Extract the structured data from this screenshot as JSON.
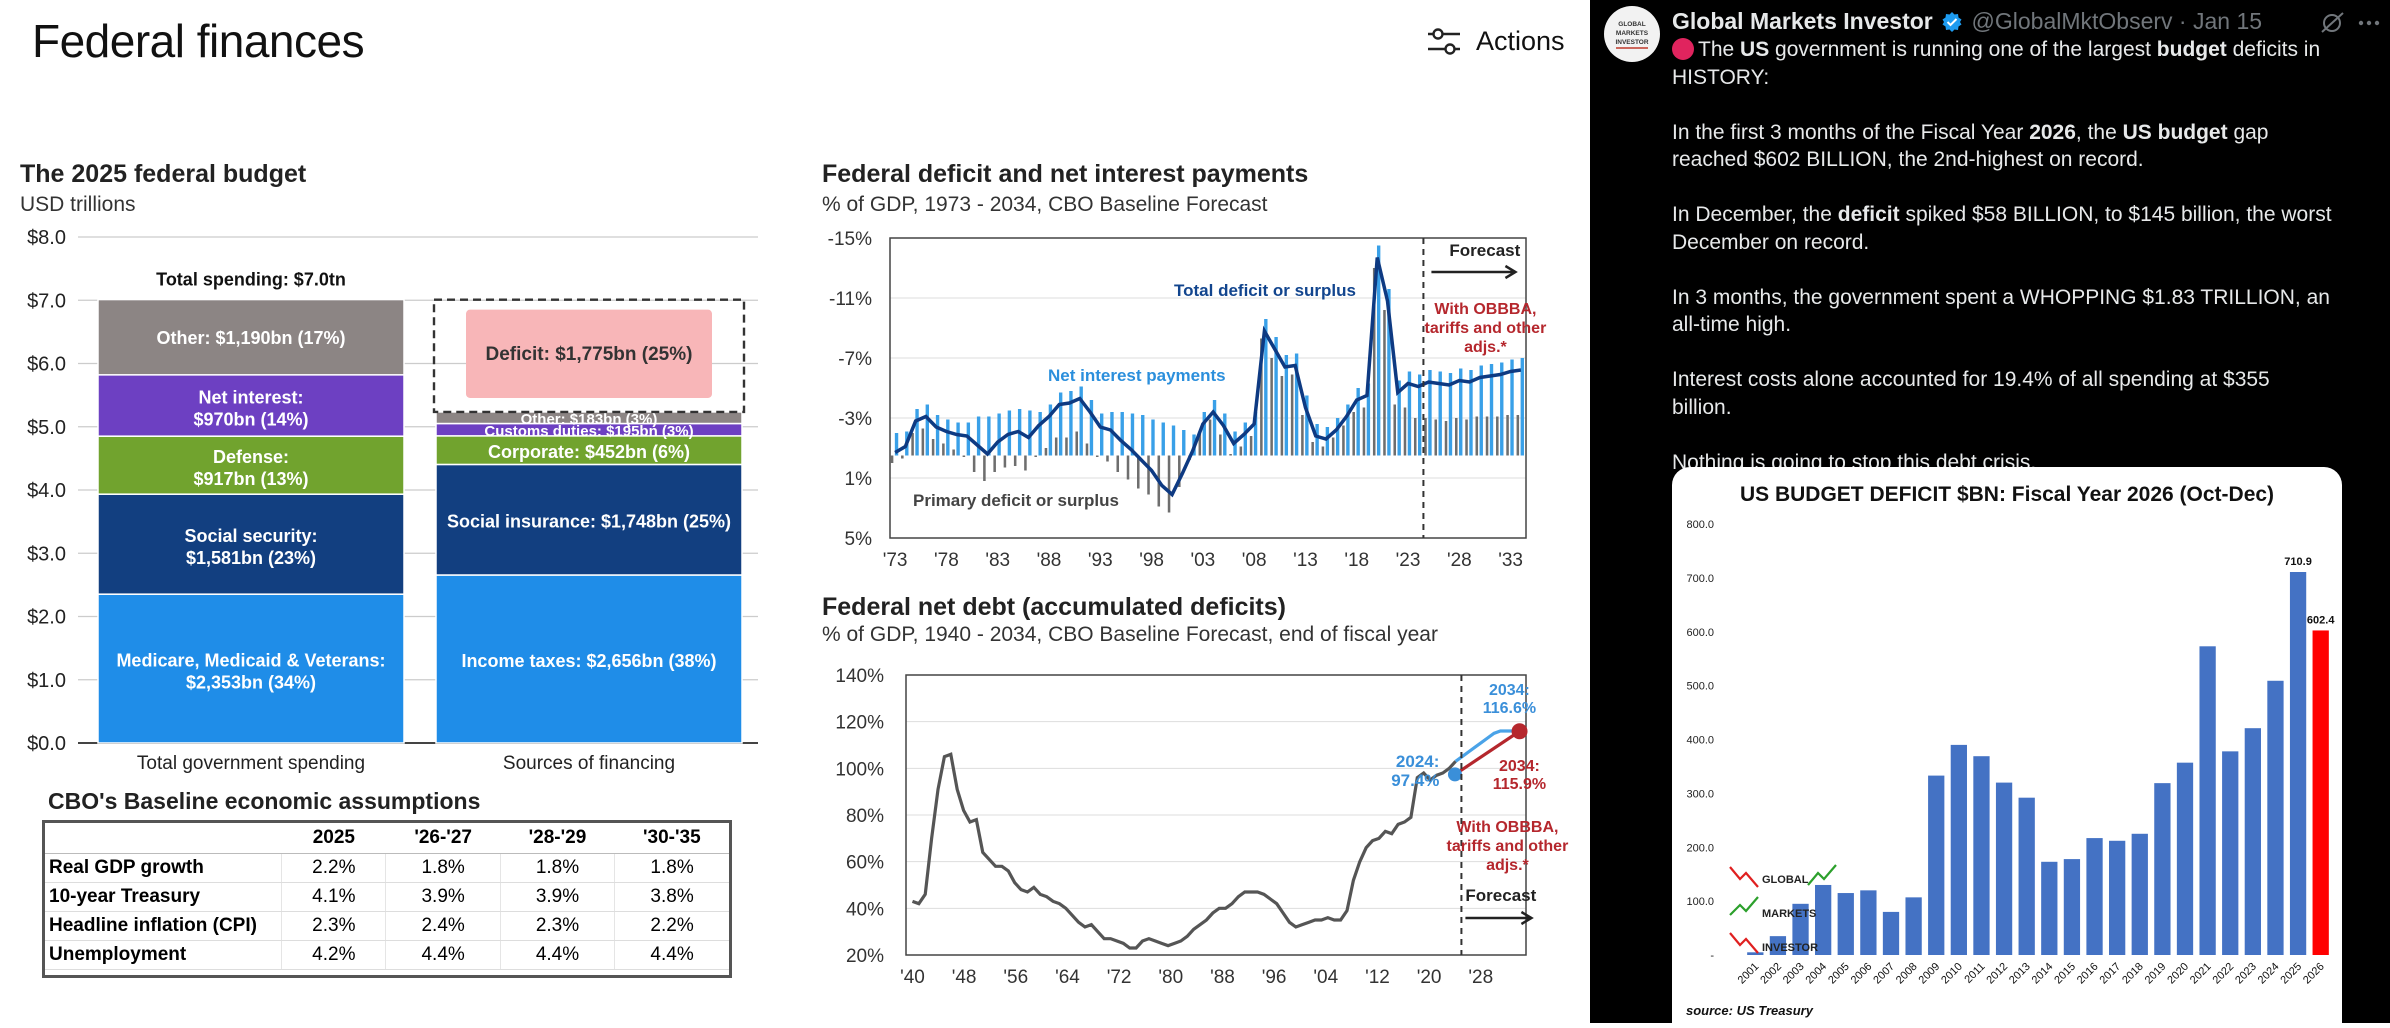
{
  "left": {
    "title": "Federal finances",
    "actions_label": "Actions",
    "budget": {
      "title": "The 2025 federal budget",
      "subtitle": "USD trillions",
      "y_ticks": [
        "$8.0",
        "$7.0",
        "$6.0",
        "$5.0",
        "$4.0",
        "$3.0",
        "$2.0",
        "$1.0",
        "$0.0"
      ],
      "total_label": "Total spending: $7.0tn",
      "spending": [
        {
          "label1": "Medicare, Medicaid & Veterans:",
          "label2": "$2,353bn (34%)",
          "value": 2.353,
          "color": "#1f8de8"
        },
        {
          "label1": "Social security:",
          "label2": "$1,581bn (23%)",
          "value": 1.581,
          "color": "#123f80"
        },
        {
          "label1": "Defense:",
          "label2": "$917bn (13%)",
          "value": 0.917,
          "color": "#71a32e"
        },
        {
          "label1": "Net interest:",
          "label2": "$970bn (14%)",
          "value": 0.97,
          "color": "#6d40c2"
        },
        {
          "label1": "Other: $1,190bn (17%)",
          "label2": "",
          "value": 1.19,
          "color": "#8c8584"
        }
      ],
      "financing": [
        {
          "label": "Income taxes: $2,656bn (38%)",
          "value": 2.656,
          "color": "#1f8de8"
        },
        {
          "label": "Social insurance: $1,748bn (25%)",
          "value": 1.748,
          "color": "#123f80"
        },
        {
          "label": "Corporate: $452bn (6%)",
          "value": 0.452,
          "color": "#71a32e"
        },
        {
          "label": "Customs duties: $195bn (3%)",
          "value": 0.195,
          "color": "#6d40c2"
        },
        {
          "label": "Other: $183bn (3%)",
          "value": 0.183,
          "color": "#8c8584"
        }
      ],
      "deficit_label": "Deficit: $1,775bn (25%)",
      "deficit_value": 1.775,
      "x_labels": [
        "Total government spending",
        "Sources of financing"
      ]
    },
    "cbo": {
      "title": "CBO's Baseline economic assumptions",
      "headers": [
        "",
        "2025",
        "'26-'27",
        "'28-'29",
        "'30-'35"
      ],
      "rows": [
        [
          "Real GDP growth",
          "2.2%",
          "1.8%",
          "1.8%",
          "1.8%"
        ],
        [
          "10-year Treasury",
          "4.1%",
          "3.9%",
          "3.9%",
          "3.8%"
        ],
        [
          "Headline inflation (CPI)",
          "2.3%",
          "2.4%",
          "2.3%",
          "2.2%"
        ],
        [
          "Unemployment",
          "4.2%",
          "4.4%",
          "4.4%",
          "4.4%"
        ]
      ]
    },
    "deficit_chart": {
      "title": "Federal deficit and net interest payments",
      "subtitle": "% of GDP, 1973 - 2034, CBO Baseline Forecast",
      "y_ticks": [
        "-15%",
        "-11%",
        "-7%",
        "-3%",
        "1%",
        "5%"
      ],
      "x_ticks": [
        "'73",
        "'78",
        "'83",
        "'88",
        "'93",
        "'98",
        "'03",
        "'08",
        "'13",
        "'18",
        "'23",
        "'28",
        "'33"
      ],
      "forecast_label": "Forecast",
      "obbba_label": [
        "With OBBBA,",
        "tariffs and other",
        "adjs.*"
      ],
      "total_label": "Total deficit or surplus",
      "interest_label": "Net interest payments",
      "primary_label": "Primary deficit or surplus"
    },
    "debt_chart": {
      "title": "Federal net debt (accumulated deficits)",
      "subtitle": "% of GDP, 1940 - 2034, CBO Baseline Forecast, end of fiscal year",
      "y_ticks": [
        "140%",
        "120%",
        "100%",
        "80%",
        "60%",
        "40%",
        "20%"
      ],
      "x_ticks": [
        "'40",
        "'48",
        "'56",
        "'64",
        "'72",
        "'80",
        "'88",
        "'96",
        "'04",
        "'12",
        "'20",
        "'28"
      ],
      "label_2024": [
        "2024:",
        "97.4%"
      ],
      "label_2034_base": [
        "2034:",
        "116.6%"
      ],
      "label_2034_obbba": [
        "2034:",
        "115.9%"
      ],
      "obbba_label": [
        "With OBBBA,",
        "tariffs and other",
        "adjs.*"
      ],
      "forecast_label": "Forecast"
    }
  },
  "tweet": {
    "name": "Global Markets Investor",
    "handle": "@GlobalMktObserv · Jan 15",
    "avatar_text": [
      "GLOBAL",
      "MARKETS",
      "INVESTOR"
    ],
    "paragraphs": [
      {
        "parts": [
          "The ",
          "US",
          " government is running one of the largest ",
          "budget",
          " deficits in HISTORY:"
        ]
      },
      {
        "parts": [
          "In the first 3 months of the Fiscal Year ",
          "2026",
          ", the ",
          "US budget",
          " gap reached $602 BILLION, the 2nd-highest on record."
        ]
      },
      {
        "parts": [
          "In December, the ",
          "deficit",
          " spiked $58 BILLION, to $145 billion, the worst December on record.",
          "",
          ""
        ]
      },
      {
        "parts": [
          "In 3 months, the government spent a WHOPPING $1.83 TRILLION, an all-time high.",
          "",
          "",
          "",
          ""
        ]
      },
      {
        "parts": [
          "Interest costs alone accounted for 19.4% of all spending at $355 billion.",
          "",
          "",
          "",
          ""
        ]
      },
      {
        "parts": [
          "Nothing is going to stop this debt crisis.",
          "",
          "",
          "",
          ""
        ]
      }
    ]
  },
  "chart_data": {
    "type": "bar",
    "title": "US BUDGET DEFICIT $BN: Fiscal Year 2026 (Oct-Dec)",
    "source": "source: US Treasury",
    "categories": [
      "2001",
      "2002",
      "2003",
      "2004",
      "2005",
      "2006",
      "2007",
      "2008",
      "2009",
      "2010",
      "2011",
      "2012",
      "2013",
      "2014",
      "2015",
      "2016",
      "2017",
      "2018",
      "2019",
      "2020",
      "2021",
      "2022",
      "2023",
      "2024",
      "2025",
      "2026"
    ],
    "values": [
      5,
      35,
      95,
      130,
      115,
      120,
      80,
      107,
      333,
      390,
      369,
      320,
      292,
      173,
      178,
      217,
      212,
      225,
      319,
      357,
      573,
      378,
      421,
      509,
      710.9,
      602.4
    ],
    "colors": {
      "default": "#4472c4",
      "highlight": "#ff0000"
    },
    "y_ticks": [
      "800.0",
      "700.0",
      "600.0",
      "500.0",
      "400.0",
      "300.0",
      "200.0",
      "100.0",
      "-"
    ],
    "ylim": [
      0,
      800
    ],
    "labels": {
      "2025": "710.9",
      "2026": "602.4"
    },
    "watermark": [
      "GLOBAL",
      "MARKETS",
      "INVESTOR"
    ]
  }
}
